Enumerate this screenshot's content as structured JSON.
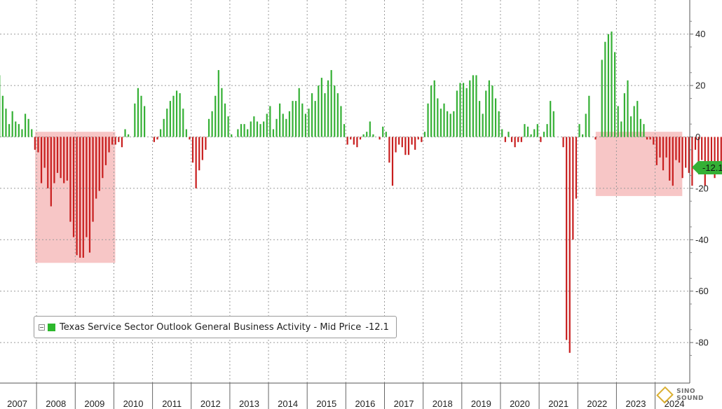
{
  "chart_data": {
    "type": "bar",
    "title": "",
    "xlabel": "",
    "ylabel": "",
    "x_ticks": [
      "2007",
      "2008",
      "2009",
      "2010",
      "2011",
      "2012",
      "2013",
      "2014",
      "2015",
      "2016",
      "2017",
      "2018",
      "2019",
      "2020",
      "2021",
      "2022",
      "2023",
      "2024"
    ],
    "y_ticks": [
      40,
      20,
      0,
      -20,
      -40,
      -60,
      -80
    ],
    "y_tick_labels": [
      "40",
      "20",
      "0",
      "-20",
      "-40",
      "-60",
      "-80"
    ],
    "ylim": [
      -90,
      52
    ],
    "x_start": "2007-01",
    "grid": true,
    "legend_position": "bottom-left",
    "colors": {
      "positive": "#35b035",
      "negative": "#c81e1e",
      "highlight_fill": "#f4b3b3"
    },
    "series": [
      {
        "name": "Texas Service Sector Outlook General Business Activity - Mid Price -12.1",
        "last_value_label": "-12.1",
        "values": [
          24,
          16,
          11,
          5,
          10,
          6,
          5,
          3,
          9,
          7,
          3,
          -5,
          -6,
          -18,
          -12,
          -20,
          -27,
          -18,
          -14,
          -16,
          -18,
          -17,
          -33,
          -39,
          -46,
          -47,
          -47,
          -39,
          -45,
          -33,
          -24,
          -21,
          -16,
          -11,
          -6,
          -3,
          -3,
          -2,
          -4,
          3,
          1,
          0,
          13,
          19,
          16,
          12,
          0,
          0,
          -2,
          -1,
          3,
          7,
          11,
          14,
          16,
          18,
          17,
          11,
          3,
          -1,
          -10,
          -20,
          -13,
          -9,
          -5,
          7,
          10,
          16,
          26,
          19,
          13,
          8,
          1,
          0,
          3,
          5,
          5,
          3,
          6,
          8,
          6,
          5,
          6,
          9,
          12,
          3,
          7,
          13,
          9,
          7,
          10,
          14,
          14,
          19,
          13,
          9,
          11,
          17,
          14,
          20,
          23,
          17,
          22,
          26,
          20,
          17,
          12,
          5,
          -3,
          -1,
          -3,
          -4,
          -1,
          1,
          2,
          6,
          1,
          0,
          -1,
          4,
          2,
          -10,
          -19,
          -6,
          -3,
          -4,
          -7,
          -7,
          -3,
          -5,
          -1,
          -2,
          2,
          13,
          20,
          22,
          15,
          11,
          13,
          10,
          9,
          10,
          18,
          21,
          21,
          19,
          22,
          24,
          24,
          14,
          9,
          18,
          22,
          20,
          15,
          10,
          3,
          -2,
          2,
          -2,
          -4,
          -2,
          -2,
          5,
          4,
          1,
          3,
          5,
          -2,
          2,
          5,
          14,
          10,
          0,
          0,
          -4,
          -79,
          -84,
          -40,
          -24,
          5,
          1,
          9,
          16,
          0,
          -1,
          0,
          30,
          37,
          40,
          41,
          33,
          12,
          6,
          17,
          22,
          8,
          12,
          14,
          7,
          5,
          -1,
          -1,
          -3,
          -11,
          -8,
          -13,
          -8,
          -17,
          -19,
          -9,
          -10,
          -16,
          -12,
          -14,
          -19,
          -5,
          -14,
          -9,
          -19,
          -12,
          -10,
          -16,
          -14,
          -12,
          -9,
          -5,
          -16,
          -8,
          -12
        ]
      }
    ],
    "highlight_ranges": [
      {
        "from_index": 12,
        "to_index": 35,
        "y_range": [
          -49,
          2
        ]
      },
      {
        "from_index": 186,
        "to_index": 211,
        "y_range": [
          -23,
          2
        ]
      }
    ]
  },
  "legend": {
    "label": "Texas Service Sector Outlook General Business Activity - Mid Price",
    "value": "-12.1"
  },
  "watermark": {
    "text": "SINO SOUND"
  }
}
